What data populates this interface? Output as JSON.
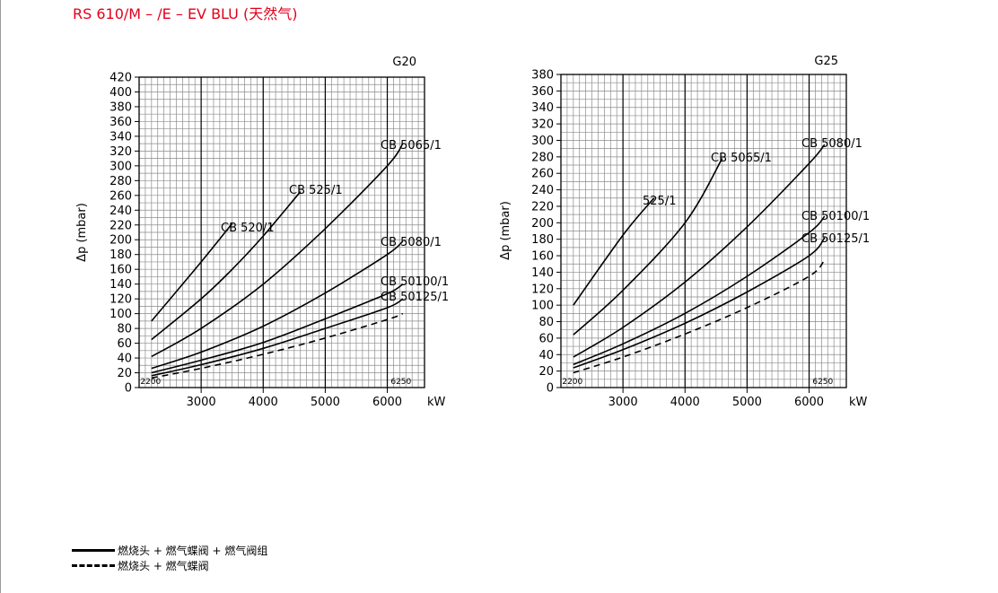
{
  "page": {
    "title": "RS 610/M – /E – EV BLU (天然气)"
  },
  "legend": [
    {
      "line": "solid",
      "label": "燃烧头 + 燃气蝶阀 + 燃气阀组"
    },
    {
      "line": "dashed",
      "label": "燃烧头 + 燃气蝶阀"
    }
  ],
  "chart_data": [
    {
      "type": "line",
      "title": "G20",
      "ylabel": "Δp (mbar)",
      "xlabel": "kW",
      "xlim": [
        2000,
        6600
      ],
      "ylim": [
        0,
        420
      ],
      "xticks": [
        3000,
        4000,
        5000,
        6000
      ],
      "yticks": [
        0,
        20,
        40,
        60,
        80,
        100,
        120,
        140,
        160,
        180,
        200,
        220,
        240,
        260,
        280,
        300,
        320,
        340,
        360,
        380,
        400,
        420
      ],
      "grid": true,
      "range_labels": [
        "2200",
        "6250"
      ],
      "series": [
        {
          "name": "CB 520/1",
          "line": "solid",
          "x": [
            2200,
            3000,
            3500
          ],
          "y": [
            90,
            170,
            222
          ]
        },
        {
          "name": "CB 525/1",
          "line": "solid",
          "x": [
            2200,
            3000,
            3500,
            4000,
            4600
          ],
          "y": [
            65,
            120,
            160,
            205,
            265
          ]
        },
        {
          "name": "CB 5065/1",
          "line": "solid",
          "x": [
            2200,
            3000,
            4000,
            5000,
            6000,
            6250
          ],
          "y": [
            42,
            80,
            140,
            215,
            300,
            330
          ]
        },
        {
          "name": "CB 5080/1",
          "line": "solid",
          "x": [
            2200,
            3000,
            4000,
            5000,
            6000,
            6250
          ],
          "y": [
            26,
            48,
            83,
            128,
            180,
            198
          ]
        },
        {
          "name": "CB 50100/1",
          "line": "solid",
          "x": [
            2200,
            3000,
            4000,
            5000,
            6000,
            6250
          ],
          "y": [
            20,
            37,
            61,
            93,
            127,
            140
          ]
        },
        {
          "name": "CB 50125/1",
          "line": "solid",
          "x": [
            2200,
            3000,
            4000,
            5000,
            6000,
            6250
          ],
          "y": [
            16,
            31,
            53,
            80,
            108,
            120
          ]
        },
        {
          "name": "",
          "line": "dashed",
          "x": [
            2200,
            3000,
            4000,
            5000,
            6000,
            6250
          ],
          "y": [
            13,
            26,
            45,
            67,
            92,
            100
          ]
        }
      ]
    },
    {
      "type": "line",
      "title": "G25",
      "ylabel": "Δp (mbar)",
      "xlabel": "kW",
      "xlim": [
        2000,
        6600
      ],
      "ylim": [
        0,
        380
      ],
      "xticks": [
        3000,
        4000,
        5000,
        6000
      ],
      "yticks": [
        0,
        20,
        40,
        60,
        80,
        100,
        120,
        140,
        160,
        180,
        200,
        220,
        240,
        260,
        280,
        300,
        320,
        340,
        360,
        380
      ],
      "grid": true,
      "range_labels": [
        "2200",
        "6250"
      ],
      "series": [
        {
          "name": "525/1",
          "line": "solid",
          "x": [
            2200,
            3000,
            3500
          ],
          "y": [
            100,
            185,
            230
          ]
        },
        {
          "name": "CB 5065/1",
          "line": "solid",
          "x": [
            2200,
            3000,
            4000,
            4600
          ],
          "y": [
            64,
            118,
            200,
            278
          ]
        },
        {
          "name": "CB 5080/1",
          "line": "solid",
          "x": [
            2200,
            3000,
            4000,
            5000,
            6000,
            6250
          ],
          "y": [
            37,
            73,
            128,
            195,
            272,
            295
          ]
        },
        {
          "name": "CB 50100/1",
          "line": "solid",
          "x": [
            2200,
            3000,
            4000,
            5000,
            6000,
            6250
          ],
          "y": [
            28,
            53,
            90,
            135,
            188,
            208
          ]
        },
        {
          "name": "CB 50125/1",
          "line": "solid",
          "x": [
            2200,
            3000,
            4000,
            5000,
            6000,
            6250
          ],
          "y": [
            24,
            46,
            78,
            116,
            160,
            182
          ]
        },
        {
          "name": "",
          "line": "dashed",
          "x": [
            2200,
            3000,
            4000,
            5000,
            6000,
            6250
          ],
          "y": [
            18,
            37,
            65,
            97,
            135,
            155
          ]
        }
      ]
    }
  ]
}
